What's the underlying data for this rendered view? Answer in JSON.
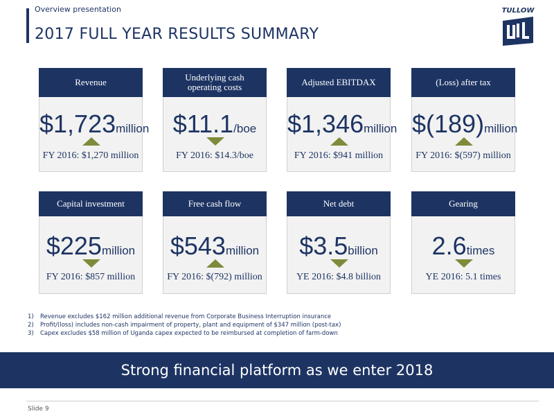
{
  "header": {
    "kicker": "Overview presentation",
    "title": "2017 FULL YEAR RESULTS SUMMARY",
    "logo": "TULLOW"
  },
  "cards": [
    {
      "label": "Revenue",
      "value": "$1,723",
      "unit": "million",
      "trend": "up",
      "comparison": "FY 2016: $1,270 million"
    },
    {
      "label": "Underlying cash operating costs",
      "value": "$11.1",
      "unit": "/boe",
      "trend": "down",
      "comparison": "FY 2016: $14.3/boe"
    },
    {
      "label": "Adjusted EBITDAX",
      "value": "$1,346",
      "unit": "million",
      "trend": "up",
      "comparison": "FY 2016: $941 million"
    },
    {
      "label": "(Loss) after tax",
      "value": "$(189)",
      "unit": "million",
      "trend": "up",
      "comparison": "FY 2016: $(597) million"
    },
    {
      "label": "Capital investment",
      "value": "$225",
      "unit": "million",
      "trend": "down",
      "comparison": "FY 2016: $857 million"
    },
    {
      "label": "Free cash flow",
      "value": "$543",
      "unit": "million",
      "trend": "up",
      "comparison": "FY 2016: $(792) million"
    },
    {
      "label": "Net debt",
      "value": "$3.5",
      "unit": "billion",
      "trend": "down",
      "comparison": "YE 2016: $4.8 billion"
    },
    {
      "label": "Gearing",
      "value": "2.6",
      "unit": "times",
      "trend": "down",
      "comparison": "YE 2016: 5.1 times"
    }
  ],
  "footnotes": [
    {
      "marker": "1)",
      "text": "Revenue excludes $162 million additional revenue from Corporate Business Interruption insurance"
    },
    {
      "marker": "2)",
      "text": "Profit/(loss) includes non-cash impairment of property, plant and equipment of $347 million (post-tax)"
    },
    {
      "marker": "3)",
      "text": "Capex excludes $58 million of Uganda capex expected to be reimbursed at completion of farm-down"
    }
  ],
  "banner": "Strong financial platform as we enter 2018",
  "footer": {
    "slide": "Slide 9"
  }
}
